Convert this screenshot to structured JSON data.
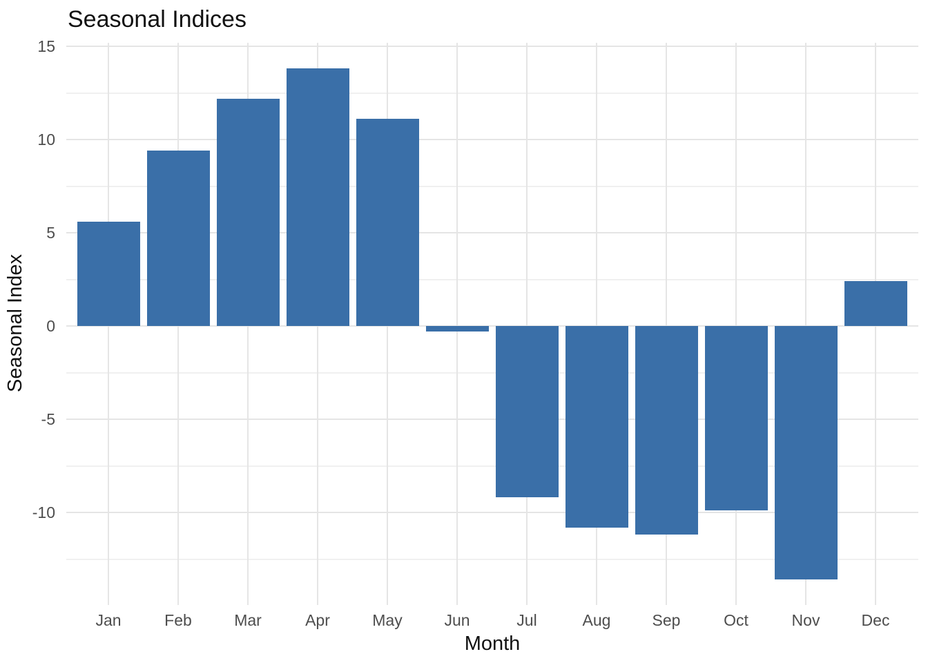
{
  "chart_data": {
    "type": "bar",
    "title": "Seasonal Indices",
    "xlabel": "Month",
    "ylabel": "Seasonal Index",
    "categories": [
      "Jan",
      "Feb",
      "Mar",
      "Apr",
      "May",
      "Jun",
      "Jul",
      "Aug",
      "Sep",
      "Oct",
      "Nov",
      "Dec"
    ],
    "values": [
      5.6,
      9.4,
      12.2,
      13.8,
      11.1,
      -0.3,
      -9.2,
      -10.8,
      -11.2,
      -9.9,
      -13.6,
      2.4
    ],
    "y_ticks": [
      15,
      10,
      5,
      0,
      -5,
      -10
    ],
    "y_minor_ticks": [
      12.5,
      7.5,
      2.5,
      -2.5,
      -7.5,
      -12.5
    ],
    "ylim": [
      -15.1,
      15.2
    ],
    "grid": "on",
    "legend": "none",
    "colors": {
      "bar": "#3A6FA8",
      "grid_major": "#E5E5E5",
      "grid_minor": "#F0F0F0",
      "tick_label": "#4D4D4D",
      "text": "#111111",
      "background": "#FFFFFF"
    }
  }
}
